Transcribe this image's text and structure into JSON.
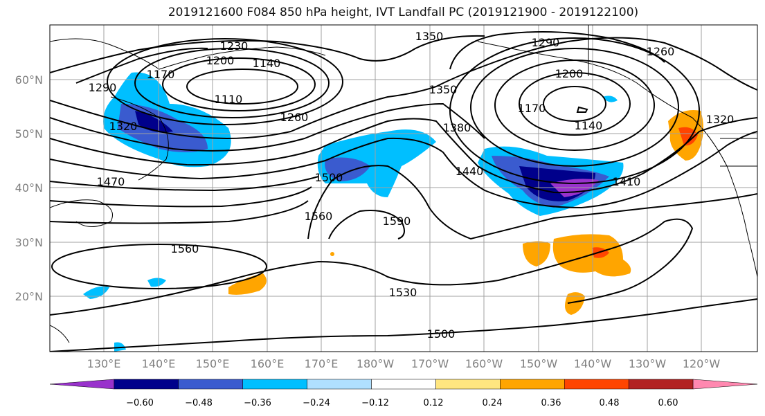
{
  "title": "2019121600 F084 850 hPa height, IVT Landfall PC (2019121900 - 2019122100)",
  "lat_labels": [
    "60°N",
    "50°N",
    "40°N",
    "30°N",
    "20°N"
  ],
  "lon_labels": [
    "130°E",
    "140°E",
    "150°E",
    "160°E",
    "170°E",
    "180°W",
    "170°W",
    "160°W",
    "150°W",
    "140°W",
    "130°W",
    "120°W"
  ],
  "contour_labels": [
    "1350",
    "1290",
    "1260",
    "1230",
    "1200",
    "1170",
    "1140",
    "1110",
    "1290",
    "1320",
    "1260",
    "1200",
    "1170",
    "1140",
    "1320",
    "1350",
    "1380",
    "1440",
    "1410",
    "1470",
    "1500",
    "1560",
    "1590",
    "1560",
    "1530",
    "1500"
  ],
  "colorbar": {
    "tick_labels": [
      "−0.60",
      "−0.48",
      "−0.36",
      "−0.24",
      "−0.12",
      "0.12",
      "0.24",
      "0.36",
      "0.48",
      "0.60"
    ],
    "colors": [
      "#9932cc",
      "#00008b",
      "#3a5bcf",
      "#00bfff",
      "#b0e0ff",
      "#ffffff",
      "#ffe680",
      "#ffa500",
      "#ff4500",
      "#b22222",
      "#ff88b0"
    ]
  },
  "colors": {
    "ocean": "#ffffff",
    "contour": "#000000",
    "grid": "#a0a0a0",
    "label_gray": "#808080"
  }
}
